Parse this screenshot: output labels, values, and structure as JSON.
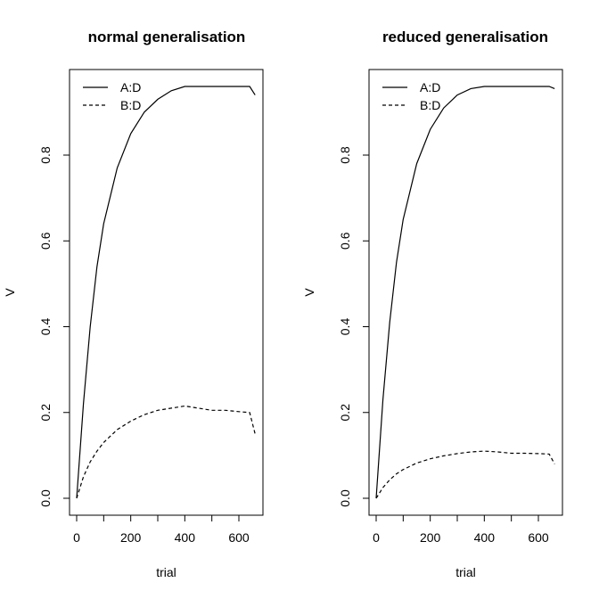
{
  "chart_data": [
    {
      "type": "line",
      "title": "normal generalisation",
      "xlabel": "trial",
      "ylabel": "V",
      "xlim": [
        0,
        672
      ],
      "ylim": [
        0,
        0.95
      ],
      "xticks": [
        0,
        200,
        400,
        600
      ],
      "xtick_labels": [
        "0",
        "200",
        "400",
        "600"
      ],
      "x_minor_ticks": [
        100,
        300,
        500
      ],
      "yticks": [
        0.0,
        0.2,
        0.4,
        0.6,
        0.8
      ],
      "ytick_labels": [
        "0.0",
        "0.2",
        "0.4",
        "0.6",
        "0.8"
      ],
      "legend": {
        "position": "top-left",
        "entries": [
          "A:D",
          "B:D"
        ]
      },
      "grid": false,
      "series": [
        {
          "name": "A:D",
          "line_style": "solid",
          "x": [
            0,
            25,
            50,
            75,
            100,
            150,
            200,
            250,
            300,
            350,
            400,
            450,
            500,
            550,
            600,
            640,
            660
          ],
          "y": [
            0.0,
            0.22,
            0.4,
            0.54,
            0.64,
            0.77,
            0.85,
            0.9,
            0.93,
            0.95,
            0.96,
            0.96,
            0.96,
            0.96,
            0.96,
            0.96,
            0.94
          ]
        },
        {
          "name": "B:D",
          "line_style": "dashed",
          "x": [
            0,
            25,
            50,
            75,
            100,
            150,
            200,
            250,
            300,
            350,
            400,
            450,
            500,
            550,
            600,
            640,
            660
          ],
          "y": [
            0.0,
            0.05,
            0.085,
            0.11,
            0.13,
            0.16,
            0.18,
            0.195,
            0.205,
            0.21,
            0.215,
            0.21,
            0.205,
            0.205,
            0.202,
            0.2,
            0.15
          ]
        }
      ]
    },
    {
      "type": "line",
      "title": "reduced generalisation",
      "xlabel": "trial",
      "ylabel": "V",
      "xlim": [
        0,
        672
      ],
      "ylim": [
        0,
        0.95
      ],
      "xticks": [
        0,
        200,
        400,
        600
      ],
      "xtick_labels": [
        "0",
        "200",
        "400",
        "600"
      ],
      "x_minor_ticks": [
        100,
        300,
        500
      ],
      "yticks": [
        0.0,
        0.2,
        0.4,
        0.6,
        0.8
      ],
      "ytick_labels": [
        "0.0",
        "0.2",
        "0.4",
        "0.6",
        "0.8"
      ],
      "legend": {
        "position": "top-left",
        "entries": [
          "A:D",
          "B:D"
        ]
      },
      "grid": false,
      "series": [
        {
          "name": "A:D",
          "line_style": "solid",
          "x": [
            0,
            25,
            50,
            75,
            100,
            150,
            200,
            250,
            300,
            350,
            400,
            450,
            500,
            550,
            600,
            640,
            660
          ],
          "y": [
            0.0,
            0.23,
            0.41,
            0.55,
            0.65,
            0.78,
            0.86,
            0.91,
            0.94,
            0.955,
            0.96,
            0.96,
            0.96,
            0.96,
            0.96,
            0.96,
            0.955
          ]
        },
        {
          "name": "B:D",
          "line_style": "dashed",
          "x": [
            0,
            25,
            50,
            75,
            100,
            150,
            200,
            250,
            300,
            350,
            400,
            450,
            500,
            550,
            600,
            640,
            660
          ],
          "y": [
            0.0,
            0.025,
            0.043,
            0.057,
            0.067,
            0.082,
            0.092,
            0.099,
            0.104,
            0.108,
            0.11,
            0.108,
            0.105,
            0.105,
            0.104,
            0.103,
            0.08
          ]
        }
      ]
    }
  ]
}
